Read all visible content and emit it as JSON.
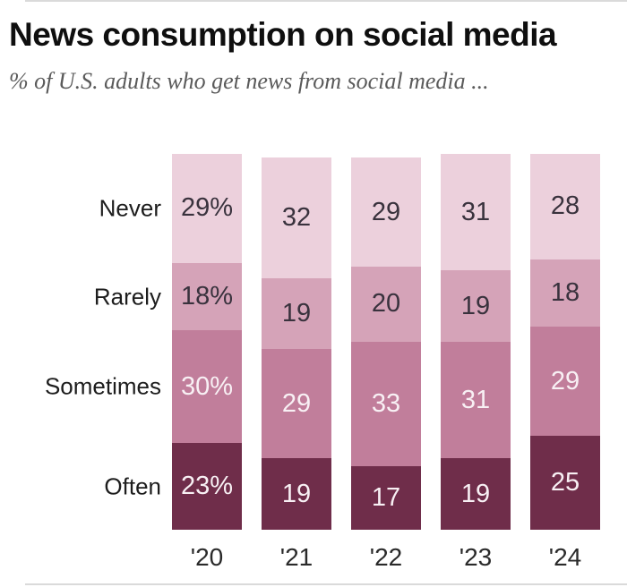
{
  "title": "News consumption on social media",
  "subtitle": "% of U.S. adults who get news from social media ...",
  "chart_data": {
    "type": "bar",
    "variant": "stacked-vertical",
    "title": "News consumption on social media",
    "subtitle": "% of U.S. adults who get news from social media ...",
    "categories": [
      "'20",
      "'21",
      "'22",
      "'23",
      "'24"
    ],
    "series": [
      {
        "name": "Never",
        "values": [
          29,
          32,
          29,
          31,
          28
        ],
        "color": "#ecd0dc",
        "label_color": "#39323d"
      },
      {
        "name": "Rarely",
        "values": [
          18,
          19,
          20,
          19,
          18
        ],
        "color": "#d5a3b8",
        "label_color": "#39323d"
      },
      {
        "name": "Sometimes",
        "values": [
          30,
          29,
          33,
          31,
          29
        ],
        "color": "#c17e9b",
        "label_color": "#f8f0f4"
      },
      {
        "name": "Often",
        "values": [
          23,
          19,
          17,
          19,
          25
        ],
        "color": "#6f2d4a",
        "label_color": "#f8f0f4"
      }
    ],
    "stack_order_top_to_bottom": [
      "Never",
      "Rarely",
      "Sometimes",
      "Often"
    ],
    "first_category_value_suffix": "%",
    "ylim": [
      0,
      100
    ],
    "grid": false,
    "legend_position": "left-of-first-bar",
    "x_axis_labels": [
      "'20",
      "'21",
      "'22",
      "'23",
      "'24"
    ]
  }
}
